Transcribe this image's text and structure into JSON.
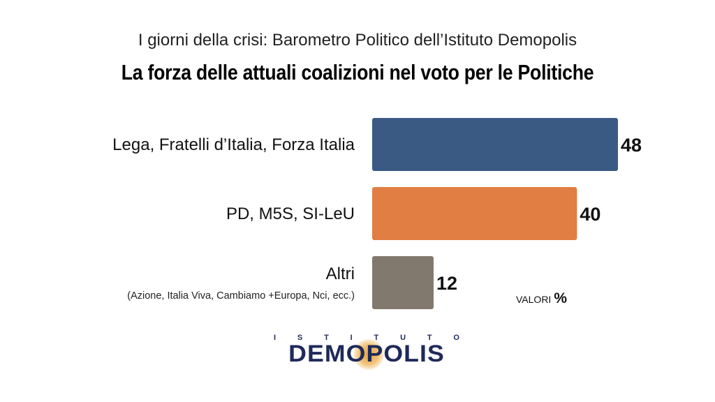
{
  "header": {
    "subtitle": "I giorni della crisi: Barometro Politico dell’Istituto Demopolis",
    "title": "La forza delle attuali coalizioni nel voto per le Politiche"
  },
  "chart_data": {
    "type": "bar",
    "orientation": "horizontal",
    "title": "La forza delle attuali coalizioni nel voto per le Politiche",
    "categories": [
      "Lega, Fratelli d’Italia, Forza Italia",
      "PD, M5S, SI-LeU",
      "Altri"
    ],
    "category_notes": [
      "",
      "",
      "(Azione, Italia Viva, Cambiamo +Europa,  Nci, ecc.)"
    ],
    "values": [
      48,
      40,
      12
    ],
    "colors": [
      "#3b5a83",
      "#e07e43",
      "#82796e"
    ],
    "units_label": "VALORI",
    "units_symbol": "%",
    "xlim": [
      0,
      48
    ],
    "grid": false,
    "legend": "none"
  },
  "logo": {
    "tagline": [
      "I",
      "S",
      "T",
      "I",
      "T",
      "U",
      "T",
      "O"
    ],
    "wordmark": "DEMOPOLIS"
  }
}
